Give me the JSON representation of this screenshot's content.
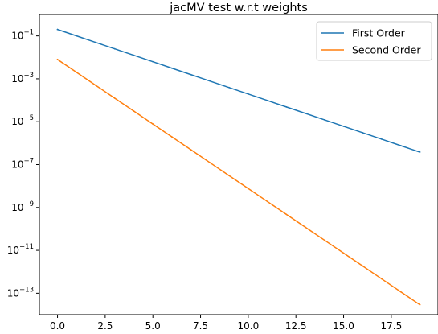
{
  "chart_data": {
    "type": "line",
    "title": "jacMV test w.r.t weights",
    "xlabel": "",
    "ylabel": "",
    "yscale": "log",
    "xlim": [
      -0.95,
      19.95
    ],
    "ylim": [
      1e-14,
      1
    ],
    "grid": false,
    "legend_position": "top-right",
    "x_ticks": [
      0,
      2.5,
      5,
      7.5,
      10,
      12.5,
      15,
      17.5
    ],
    "x_tick_labels": [
      "0.0",
      "2.5",
      "5.0",
      "7.5",
      "10.0",
      "12.5",
      "15.0",
      "17.5"
    ],
    "y_ticks": [
      1e-13,
      1e-11,
      1e-09,
      1e-07,
      1e-05,
      0.001,
      0.1
    ],
    "y_tick_labels": [
      {
        "base": "10",
        "exp": "−13"
      },
      {
        "base": "10",
        "exp": "−11"
      },
      {
        "base": "10",
        "exp": "−9"
      },
      {
        "base": "10",
        "exp": "−7"
      },
      {
        "base": "10",
        "exp": "−5"
      },
      {
        "base": "10",
        "exp": "−3"
      },
      {
        "base": "10",
        "exp": "−1"
      }
    ],
    "x": [
      0,
      1,
      2,
      3,
      4,
      5,
      6,
      7,
      8,
      9,
      10,
      11,
      12,
      13,
      14,
      15,
      16,
      17,
      18,
      19
    ],
    "series": [
      {
        "name": "First Order",
        "color": "#1f77b4",
        "values": [
          0.2,
          0.1,
          0.05,
          0.025,
          0.0125,
          0.00625,
          0.003125,
          0.0015625,
          0.00078125,
          0.000390625,
          0.0001953125,
          9.765625e-05,
          4.8828125e-05,
          2.44140625e-05,
          1.220703125e-05,
          6.103515625e-06,
          3.0517578125e-06,
          1.52587890625e-06,
          7.62939453125e-07,
          3.814697265625e-07
        ]
      },
      {
        "name": "Second Order",
        "color": "#ff7f0e",
        "values": [
          0.008,
          0.002,
          0.0005,
          0.000125,
          3.125e-05,
          7.8125e-06,
          1.953125e-06,
          4.8828125e-07,
          1.220703125e-07,
          3.0517578125e-08,
          7.62939453125e-09,
          1.9073486328125e-09,
          4.76837158203125e-10,
          1.1920928955078125e-10,
          2.980232238769531e-11,
          7.450580596923828e-12,
          1.862645149230957e-12,
          4.656612873077393e-13,
          1.1641532182693482e-13,
          2.9103830456733704e-14
        ]
      }
    ]
  }
}
